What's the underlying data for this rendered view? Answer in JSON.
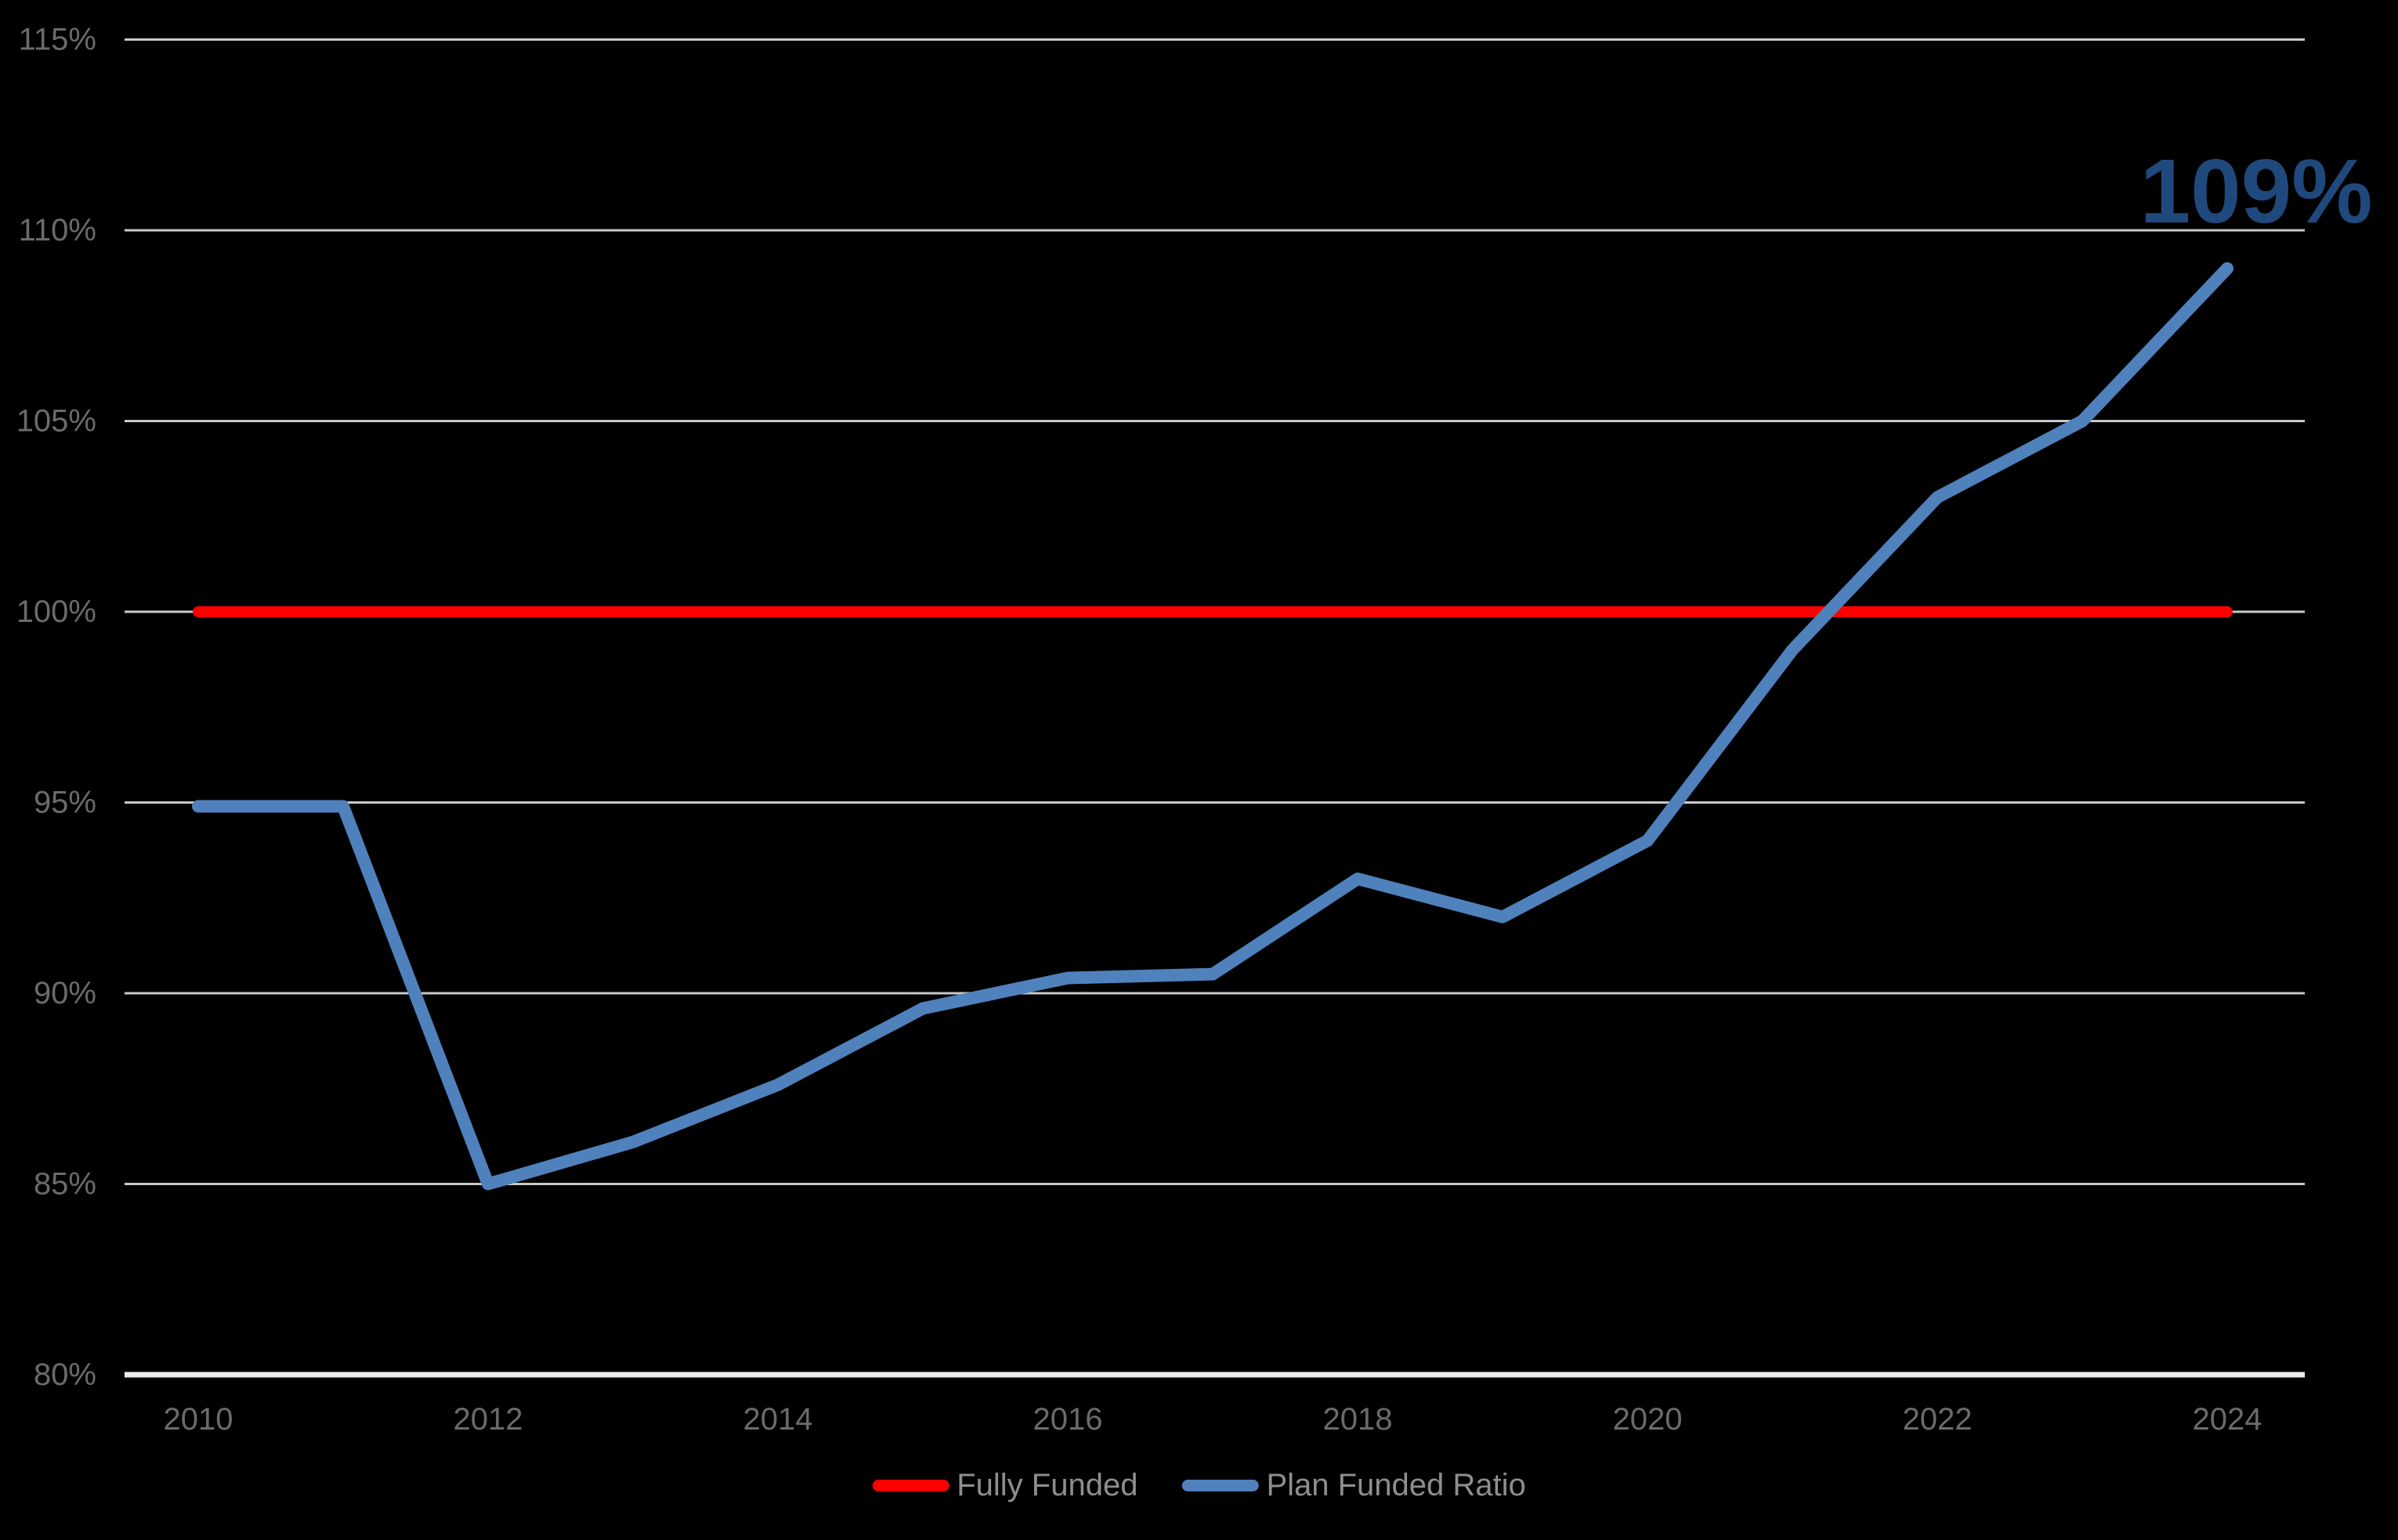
{
  "chart_data": {
    "type": "line",
    "title": "",
    "x": [
      2010,
      2011,
      2012,
      2013,
      2014,
      2015,
      2016,
      2017,
      2018,
      2019,
      2020,
      2021,
      2022,
      2023,
      2024
    ],
    "series": [
      {
        "name": "Fully Funded",
        "color": "#FF0000",
        "values": [
          100,
          100,
          100,
          100,
          100,
          100,
          100,
          100,
          100,
          100,
          100,
          100,
          100,
          100,
          100
        ]
      },
      {
        "name": "Plan Funded Ratio",
        "color": "#4F81BD",
        "values": [
          94.9,
          94.9,
          85,
          86.1,
          87.6,
          89.6,
          90.4,
          90.5,
          93,
          92,
          94,
          99,
          103,
          105,
          109
        ]
      }
    ],
    "ylim": [
      80,
      115
    ],
    "ytick_step": 5,
    "ytick_labels": [
      "80%",
      "85%",
      "90%",
      "95%",
      "100%",
      "105%",
      "110%",
      "115%"
    ],
    "xtick_labels": [
      "2010",
      "2012",
      "2014",
      "2016",
      "2018",
      "2020",
      "2022",
      "2024"
    ],
    "annotation": {
      "text": "109%",
      "color": "#1F497D"
    },
    "grid": true,
    "legend_position": "bottom",
    "background": "#000000",
    "gridline_color": "#C9C9C9",
    "axis_line_color": "#EBEBEB",
    "tick_label_color": "#6B6B6B",
    "legend_text_color": "#8E8E8E"
  },
  "legend": {
    "items": [
      {
        "label": "Fully Funded",
        "color": "#FF0000"
      },
      {
        "label": "Plan Funded Ratio",
        "color": "#4F81BD"
      }
    ]
  }
}
